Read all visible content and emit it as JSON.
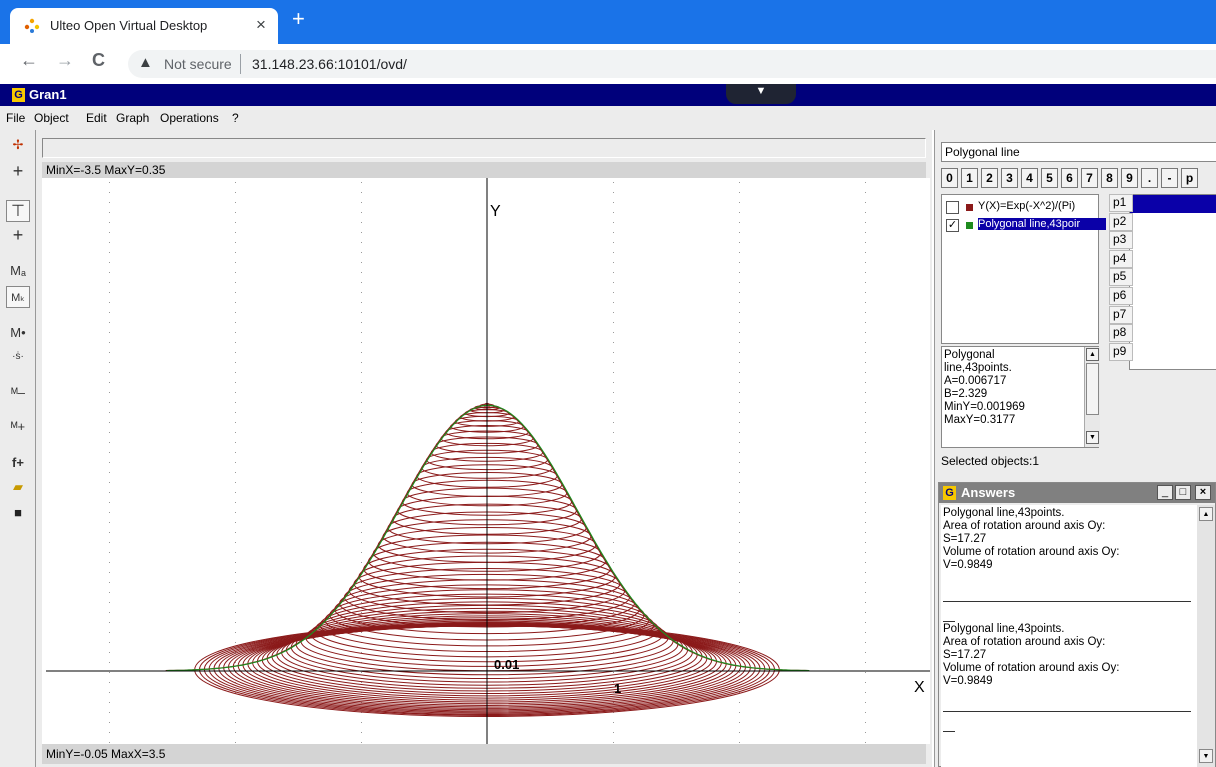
{
  "browser": {
    "tab_title": "Ulteo Open Virtual Desktop",
    "tab_close": "×",
    "new_tab": "+",
    "back": "←",
    "forward": "→",
    "reload": "C",
    "warn_icon": "▲",
    "not_secure": "Not secure",
    "url": "31.148.23.66:10101/ovd/"
  },
  "app": {
    "logo": "G",
    "title": "Gran1",
    "dropper": "▼",
    "menu": [
      "File",
      "Object",
      "Edit",
      "Graph",
      "Operations",
      "?"
    ]
  },
  "graph": {
    "info_top": "MinX=-3.5  MaxY=0.35",
    "info_bottom": "MinY=-0.05  MaxX=3.5",
    "axis_y": "Y",
    "axis_x": "X",
    "tick_origin": "0.01",
    "tick_x1": "1"
  },
  "panel": {
    "object_title": "Polygonal line",
    "keys": [
      "0",
      "1",
      "2",
      "3",
      "4",
      "5",
      "6",
      "7",
      "8",
      "9",
      ".",
      "-",
      "p"
    ],
    "objects": [
      {
        "checked": false,
        "color": "#8b1a1a",
        "label": "Y(X)=Exp(-X^2)/(Pi)"
      },
      {
        "checked": true,
        "color": "#1e8b1e",
        "label": "Polygonal line,43poir"
      }
    ],
    "params": [
      "p1",
      "p2",
      "p3",
      "p4",
      "p5",
      "p6",
      "p7",
      "p8",
      "p9"
    ],
    "detail": [
      "Polygonal",
      "line,43points.",
      "A=0.006717",
      "B=2.329",
      "MinY=0.001969",
      "MaxY=0.3177"
    ],
    "selected": "Selected objects:1"
  },
  "answers": {
    "logo": "G",
    "title": "Answers",
    "btn_min": "_",
    "btn_max": "□",
    "btn_close": "×",
    "block1": [
      "Polygonal line,43points.",
      "Area of rotation around axis Oy:",
      "S=17.27",
      "Volume of rotation around axis Oy:",
      "V=0.9849"
    ],
    "block2": [
      "Polygonal line,43points.",
      "Area of rotation around axis Oy:",
      "S=17.27",
      "Volume of rotation around axis Oy:",
      "V=0.9849"
    ]
  }
}
